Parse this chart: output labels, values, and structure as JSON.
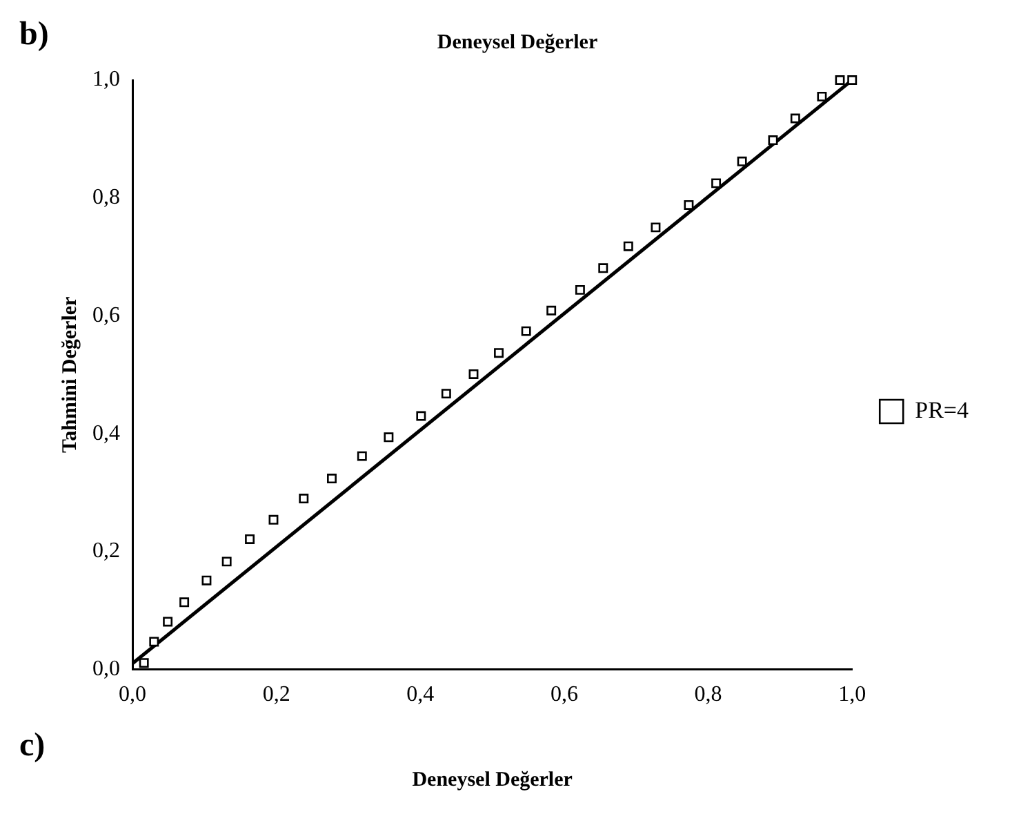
{
  "chart_data": {
    "type": "scatter",
    "title": "Deneysel Değerler",
    "xlabel": "Deneysel Değerler",
    "ylabel": "Tahmini Değerler",
    "annotations": [
      "b)",
      "c)"
    ],
    "series": [
      {
        "name": "PR=4",
        "color": "#000000",
        "marker": "square",
        "x": [
          0.016,
          0.03,
          0.049,
          0.072,
          0.103,
          0.131,
          0.163,
          0.196,
          0.238,
          0.277,
          0.319,
          0.356,
          0.401,
          0.436,
          0.474,
          0.509,
          0.547,
          0.582,
          0.622,
          0.654,
          0.689,
          0.727,
          0.773,
          0.811,
          0.847,
          0.89,
          0.921,
          0.958,
          0.983,
          1.0
        ],
        "values": [
          0.011,
          0.047,
          0.081,
          0.114,
          0.151,
          0.183,
          0.221,
          0.254,
          0.29,
          0.324,
          0.362,
          0.394,
          0.43,
          0.468,
          0.501,
          0.537,
          0.574,
          0.609,
          0.644,
          0.681,
          0.718,
          0.75,
          0.788,
          0.825,
          0.862,
          0.898,
          0.935,
          0.972,
          1.0,
          1.0
        ]
      },
      {
        "type": "line",
        "color": "#000000",
        "marker": "none",
        "x": [
          0.0,
          1.0
        ],
        "values": [
          0.01,
          1.0
        ]
      }
    ],
    "xlim": [
      0,
      1
    ],
    "ylim": [
      0,
      1
    ],
    "xticks": [
      {
        "value": 0,
        "label": "0,0"
      },
      {
        "value": 0.2,
        "label": "0,2"
      },
      {
        "value": 0.4,
        "label": "0,4"
      },
      {
        "value": 0.6,
        "label": "0,6"
      },
      {
        "value": 0.8,
        "label": "0,8"
      },
      {
        "value": 1,
        "label": "1,0"
      }
    ],
    "yticks": [
      {
        "value": 0,
        "label": "0,0"
      },
      {
        "value": 0.2,
        "label": "0,2"
      },
      {
        "value": 0.4,
        "label": "0,4"
      },
      {
        "value": 0.6,
        "label": "0,6"
      },
      {
        "value": 0.8,
        "label": "0,8"
      },
      {
        "value": 1,
        "label": "1,0"
      }
    ],
    "grid": false,
    "legend": "right"
  }
}
